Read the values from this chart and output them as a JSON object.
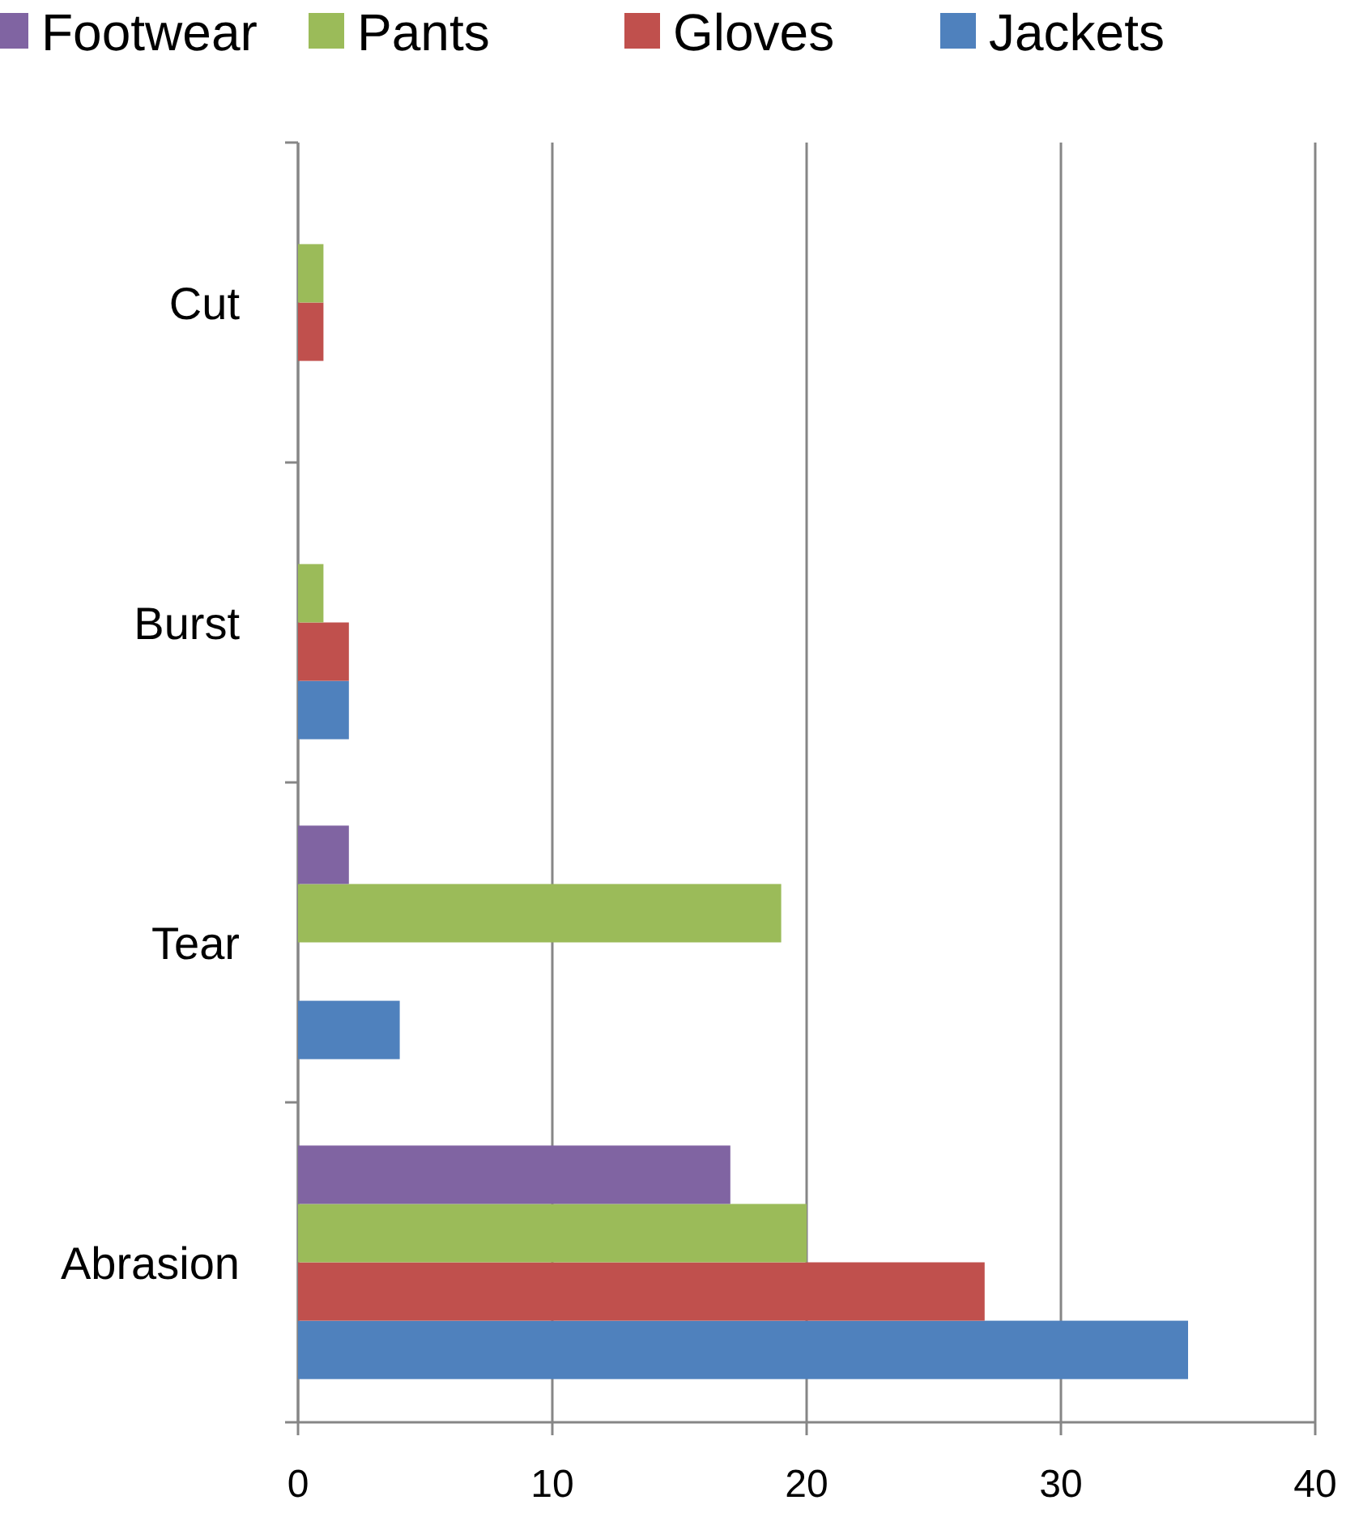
{
  "chart_data": {
    "type": "bar",
    "orientation": "horizontal",
    "categories": [
      "Cut",
      "Burst",
      "Tear",
      "Abrasion"
    ],
    "series": [
      {
        "name": "Jackets",
        "color": "#4f81bd",
        "values": [
          0,
          2,
          4,
          35
        ]
      },
      {
        "name": "Gloves",
        "color": "#c0504d",
        "values": [
          1,
          2,
          0,
          27
        ]
      },
      {
        "name": "Pants",
        "color": "#9bbb59",
        "values": [
          1,
          1,
          19,
          20
        ]
      },
      {
        "name": "Footwear",
        "color": "#8064a2",
        "values": [
          0,
          0,
          2,
          17
        ]
      }
    ],
    "xlim": [
      0,
      40
    ],
    "xticks": [
      0,
      10,
      20,
      30,
      40
    ],
    "grid": "x",
    "legend": "top"
  }
}
